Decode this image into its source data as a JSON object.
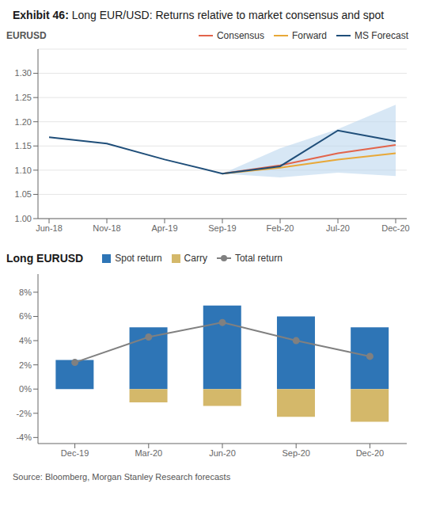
{
  "chart_data": [
    {
      "type": "line",
      "title": "Exhibit 46: Long EUR/USD: Returns relative to market consensus and spot",
      "y_label": "EURUSD",
      "categories": [
        "Jun-18",
        "Nov-18",
        "Apr-19",
        "Sep-19",
        "Feb-20",
        "Jul-20",
        "Dec-20"
      ],
      "series": [
        {
          "name": "Consensus",
          "color": "#E2644B",
          "values": [
            null,
            null,
            null,
            1.093,
            1.11,
            1.135,
            1.152
          ]
        },
        {
          "name": "Forward",
          "color": "#E8A838",
          "values": [
            null,
            null,
            null,
            1.093,
            1.105,
            1.122,
            1.135
          ]
        },
        {
          "name": "MS Forecast",
          "color": "#1F4E79",
          "values": [
            1.168,
            1.155,
            1.122,
            1.093,
            1.108,
            1.182,
            1.16
          ]
        }
      ],
      "band": {
        "color": "#BDD7EE",
        "upper": [
          null,
          null,
          null,
          1.093,
          1.145,
          1.185,
          1.235
        ],
        "lower": [
          null,
          null,
          null,
          1.093,
          1.085,
          1.095,
          1.088
        ]
      },
      "ylim": [
        1.0,
        1.35
      ],
      "yticks": [
        {
          "value": 1.0,
          "label": "1.00"
        },
        {
          "value": 1.05,
          "label": "1.05"
        },
        {
          "value": 1.1,
          "label": "1.10"
        },
        {
          "value": 1.15,
          "label": "1.15"
        },
        {
          "value": 1.2,
          "label": "1.20"
        },
        {
          "value": 1.25,
          "label": "1.25"
        },
        {
          "value": 1.3,
          "label": "1.30"
        }
      ],
      "grid": true
    },
    {
      "type": "bar",
      "title": "Long EURUSD",
      "categories": [
        "Dec-19",
        "Mar-20",
        "Jun-20",
        "Sep-20",
        "Dec-20"
      ],
      "series": [
        {
          "name": "Spot return",
          "type": "bar",
          "color": "#2E75B6",
          "values": [
            2.4,
            5.1,
            6.9,
            6.0,
            5.1
          ]
        },
        {
          "name": "Carry",
          "type": "bar",
          "color": "#D4B86A",
          "values": [
            0.0,
            -1.1,
            -1.4,
            -2.3,
            -2.7
          ]
        },
        {
          "name": "Total return",
          "type": "line",
          "color": "#808080",
          "marker": "circle",
          "values": [
            2.2,
            4.3,
            5.5,
            4.0,
            2.7
          ]
        }
      ],
      "ylim": [
        -4.5,
        9.5
      ],
      "yticks": [
        {
          "value": -4,
          "label": "-4%"
        },
        {
          "value": -2,
          "label": "-2%"
        },
        {
          "value": 0,
          "label": "0%"
        },
        {
          "value": 2,
          "label": "2%"
        },
        {
          "value": 4,
          "label": "4%"
        },
        {
          "value": 6,
          "label": "6%"
        },
        {
          "value": 8,
          "label": "8%"
        }
      ],
      "grid": false,
      "source": "Source: Bloomberg, Morgan Stanley Research forecasts"
    }
  ]
}
